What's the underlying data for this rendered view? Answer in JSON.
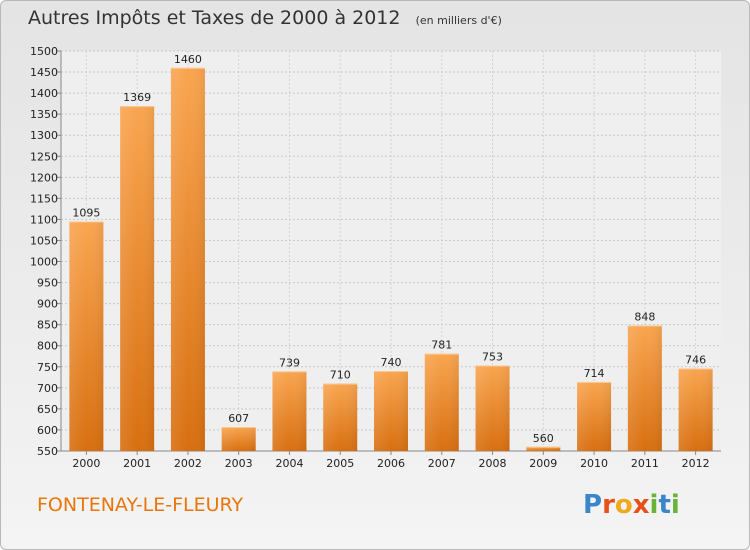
{
  "header": {
    "title": "Autres Impôts et Taxes de 2000 à 2012",
    "subtitle": "(en milliers d'€)"
  },
  "footer": {
    "town": "FONTENAY-LE-FLEURY",
    "logo": "Proxiti"
  },
  "colors": {
    "bar_top": "#f9a550",
    "bar_bottom": "#d86f10",
    "town": "#e8760a"
  },
  "chart_data": {
    "type": "bar",
    "title": "Autres Impôts et Taxes de 2000 à 2012",
    "subtitle": "(en milliers d'€)",
    "xlabel": "",
    "ylabel": "",
    "categories": [
      "2000",
      "2001",
      "2002",
      "2003",
      "2004",
      "2005",
      "2006",
      "2007",
      "2008",
      "2009",
      "2010",
      "2011",
      "2012"
    ],
    "values": [
      1095,
      1369,
      1460,
      607,
      739,
      710,
      740,
      781,
      753,
      560,
      714,
      848,
      746
    ],
    "ylim": [
      550,
      1500
    ],
    "yticks": [
      550,
      600,
      650,
      700,
      750,
      800,
      850,
      900,
      950,
      1000,
      1050,
      1100,
      1150,
      1200,
      1250,
      1300,
      1350,
      1400,
      1450,
      1500
    ],
    "grid": true,
    "legend": "none"
  }
}
